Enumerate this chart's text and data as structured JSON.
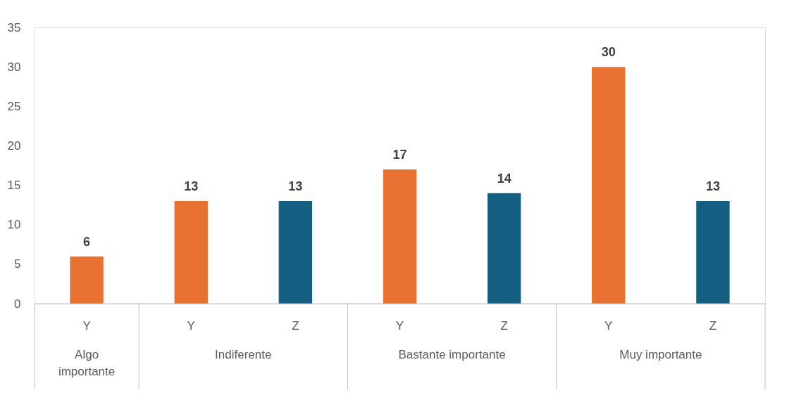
{
  "chart_data": {
    "type": "bar",
    "categories": [
      "Y",
      "Y",
      "Z",
      "Y",
      "Z",
      "Y",
      "Z"
    ],
    "values": [
      6,
      13,
      13,
      17,
      14,
      30,
      13
    ],
    "colors": [
      "#e97132",
      "#e97132",
      "#156082",
      "#e97132",
      "#156082",
      "#e97132",
      "#156082"
    ],
    "annotations": [
      "Algo importante",
      "Indiferente",
      "Bastante importante",
      "Muy importante"
    ],
    "ylim": [
      0,
      35
    ],
    "yticks": [
      0,
      5,
      10,
      15,
      20,
      25,
      30,
      35
    ],
    "data_labels": true
  }
}
